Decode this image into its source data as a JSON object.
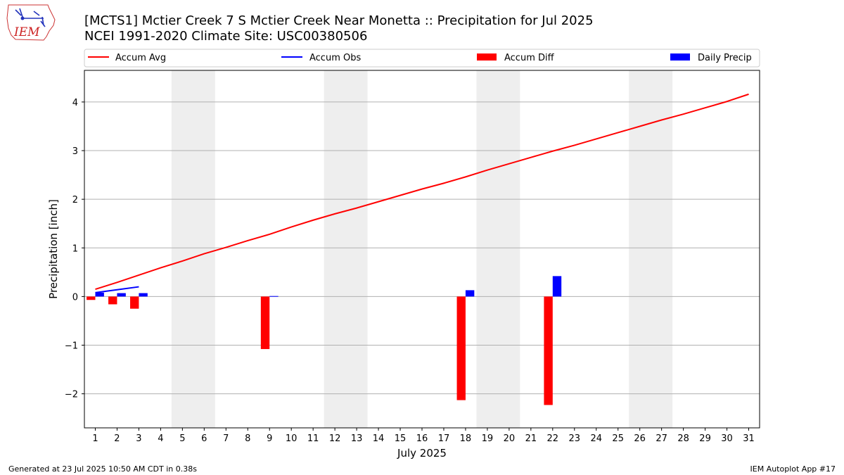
{
  "header": {
    "title_line1": "[MCTS1] Mctier Creek 7 S Mctier Creek Near Monetta :: Precipitation for Jul 2025",
    "title_line2": "NCEI 1991-2020 Climate Site: USC00380506"
  },
  "logo": {
    "text": "IEM"
  },
  "footer": {
    "generated": "Generated at 23 Jul 2025 10:50 AM CDT in 0.38s",
    "app": "IEM Autoplot App #17"
  },
  "colors": {
    "accum_avg": "#ff0000",
    "accum_obs": "#0000ff",
    "accum_diff": "#ff0000",
    "daily_precip": "#0000ff",
    "weekend_shade": "#eeeeee",
    "grid": "#b0b0b0"
  },
  "chart_data": {
    "type": "bar",
    "xlabel": "July 2025",
    "ylabel": "Precipitation [inch]",
    "xlim": [
      0.5,
      31.5
    ],
    "ylim": [
      -2.7,
      4.65
    ],
    "yticks": [
      -2,
      -1,
      0,
      1,
      2,
      3,
      4
    ],
    "ytick_labels": [
      "−2",
      "−1",
      "0",
      "1",
      "2",
      "3",
      "4"
    ],
    "x": [
      1,
      2,
      3,
      4,
      5,
      6,
      7,
      8,
      9,
      10,
      11,
      12,
      13,
      14,
      15,
      16,
      17,
      18,
      19,
      20,
      21,
      22,
      23,
      24,
      25,
      26,
      27,
      28,
      29,
      30,
      31
    ],
    "grid": "horizontal",
    "legend_placement": "top",
    "shaded_days": [
      [
        5,
        6
      ],
      [
        12,
        13
      ],
      [
        19,
        20
      ],
      [
        26,
        27
      ]
    ],
    "series": [
      {
        "name": "Accum Avg",
        "kind": "line",
        "x": [
          1,
          2,
          3,
          4,
          5,
          6,
          7,
          8,
          9,
          10,
          11,
          12,
          13,
          14,
          15,
          16,
          17,
          18,
          19,
          20,
          21,
          22,
          23,
          24,
          25,
          26,
          27,
          28,
          29,
          30,
          31
        ],
        "values": [
          0.15,
          0.29,
          0.44,
          0.59,
          0.73,
          0.88,
          1.01,
          1.15,
          1.28,
          1.43,
          1.57,
          1.7,
          1.82,
          1.95,
          2.08,
          2.21,
          2.33,
          2.46,
          2.6,
          2.73,
          2.86,
          2.99,
          3.11,
          3.24,
          3.37,
          3.5,
          3.63,
          3.75,
          3.88,
          4.01,
          4.16
        ]
      },
      {
        "name": "Accum Obs",
        "kind": "line",
        "x": [
          1,
          2,
          3
        ],
        "values": [
          0.08,
          0.14,
          0.2
        ]
      },
      {
        "name": "Accum Diff",
        "kind": "bar",
        "x": [
          1,
          2,
          3,
          9,
          18,
          22
        ],
        "values": [
          -0.07,
          -0.16,
          -0.25,
          -1.08,
          -2.13,
          -2.23
        ]
      },
      {
        "name": "Daily Precip",
        "kind": "bar",
        "x": [
          1,
          2,
          3,
          9,
          18,
          22
        ],
        "values": [
          0.08,
          0.07,
          0.07,
          0.01,
          0.13,
          0.42
        ]
      }
    ]
  }
}
